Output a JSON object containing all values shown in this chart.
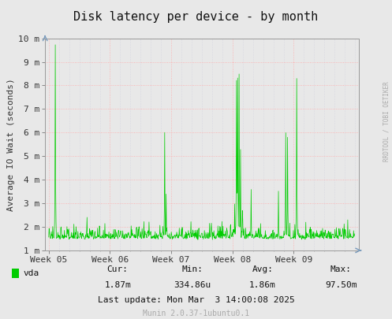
{
  "title": "Disk latency per device - by month",
  "ylabel": "Average IO Wait (seconds)",
  "background_color": "#e8e8e8",
  "plot_bg_color": "#e8e8e8",
  "line_color": "#00cc00",
  "grid_color_major": "#ffaaaa",
  "grid_color_minor": "#ccccdd",
  "ytick_labels": [
    "1 m",
    "2 m",
    "3 m",
    "4 m",
    "5 m",
    "6 m",
    "7 m",
    "8 m",
    "9 m",
    "10 m"
  ],
  "ytick_values": [
    0.001,
    0.002,
    0.003,
    0.004,
    0.005,
    0.006,
    0.007,
    0.008,
    0.009,
    0.01
  ],
  "ymin": 0.001,
  "ymax": 0.01,
  "xtick_labels": [
    "Week 05",
    "Week 06",
    "Week 07",
    "Week 08",
    "Week 09"
  ],
  "xtick_positions": [
    0,
    168,
    336,
    504,
    672
  ],
  "xmin": -10,
  "xmax": 850,
  "legend_label": "vda",
  "legend_color": "#00cc00",
  "cur_label": "Cur:",
  "cur_val": "1.87m",
  "min_label": "Min:",
  "min_val": "334.86u",
  "avg_label": "Avg:",
  "avg_val": "1.86m",
  "max_label": "Max:",
  "max_val": "97.50m",
  "last_update": "Last update: Mon Mar  3 14:00:08 2025",
  "munin_label": "Munin 2.0.37-1ubuntu0.1",
  "rrdtool_label": "RRDTOOL / TOBI OETIKER",
  "title_fontsize": 11,
  "axis_fontsize": 8,
  "tick_fontsize": 8,
  "footer_fontsize": 8,
  "munin_fontsize": 7
}
